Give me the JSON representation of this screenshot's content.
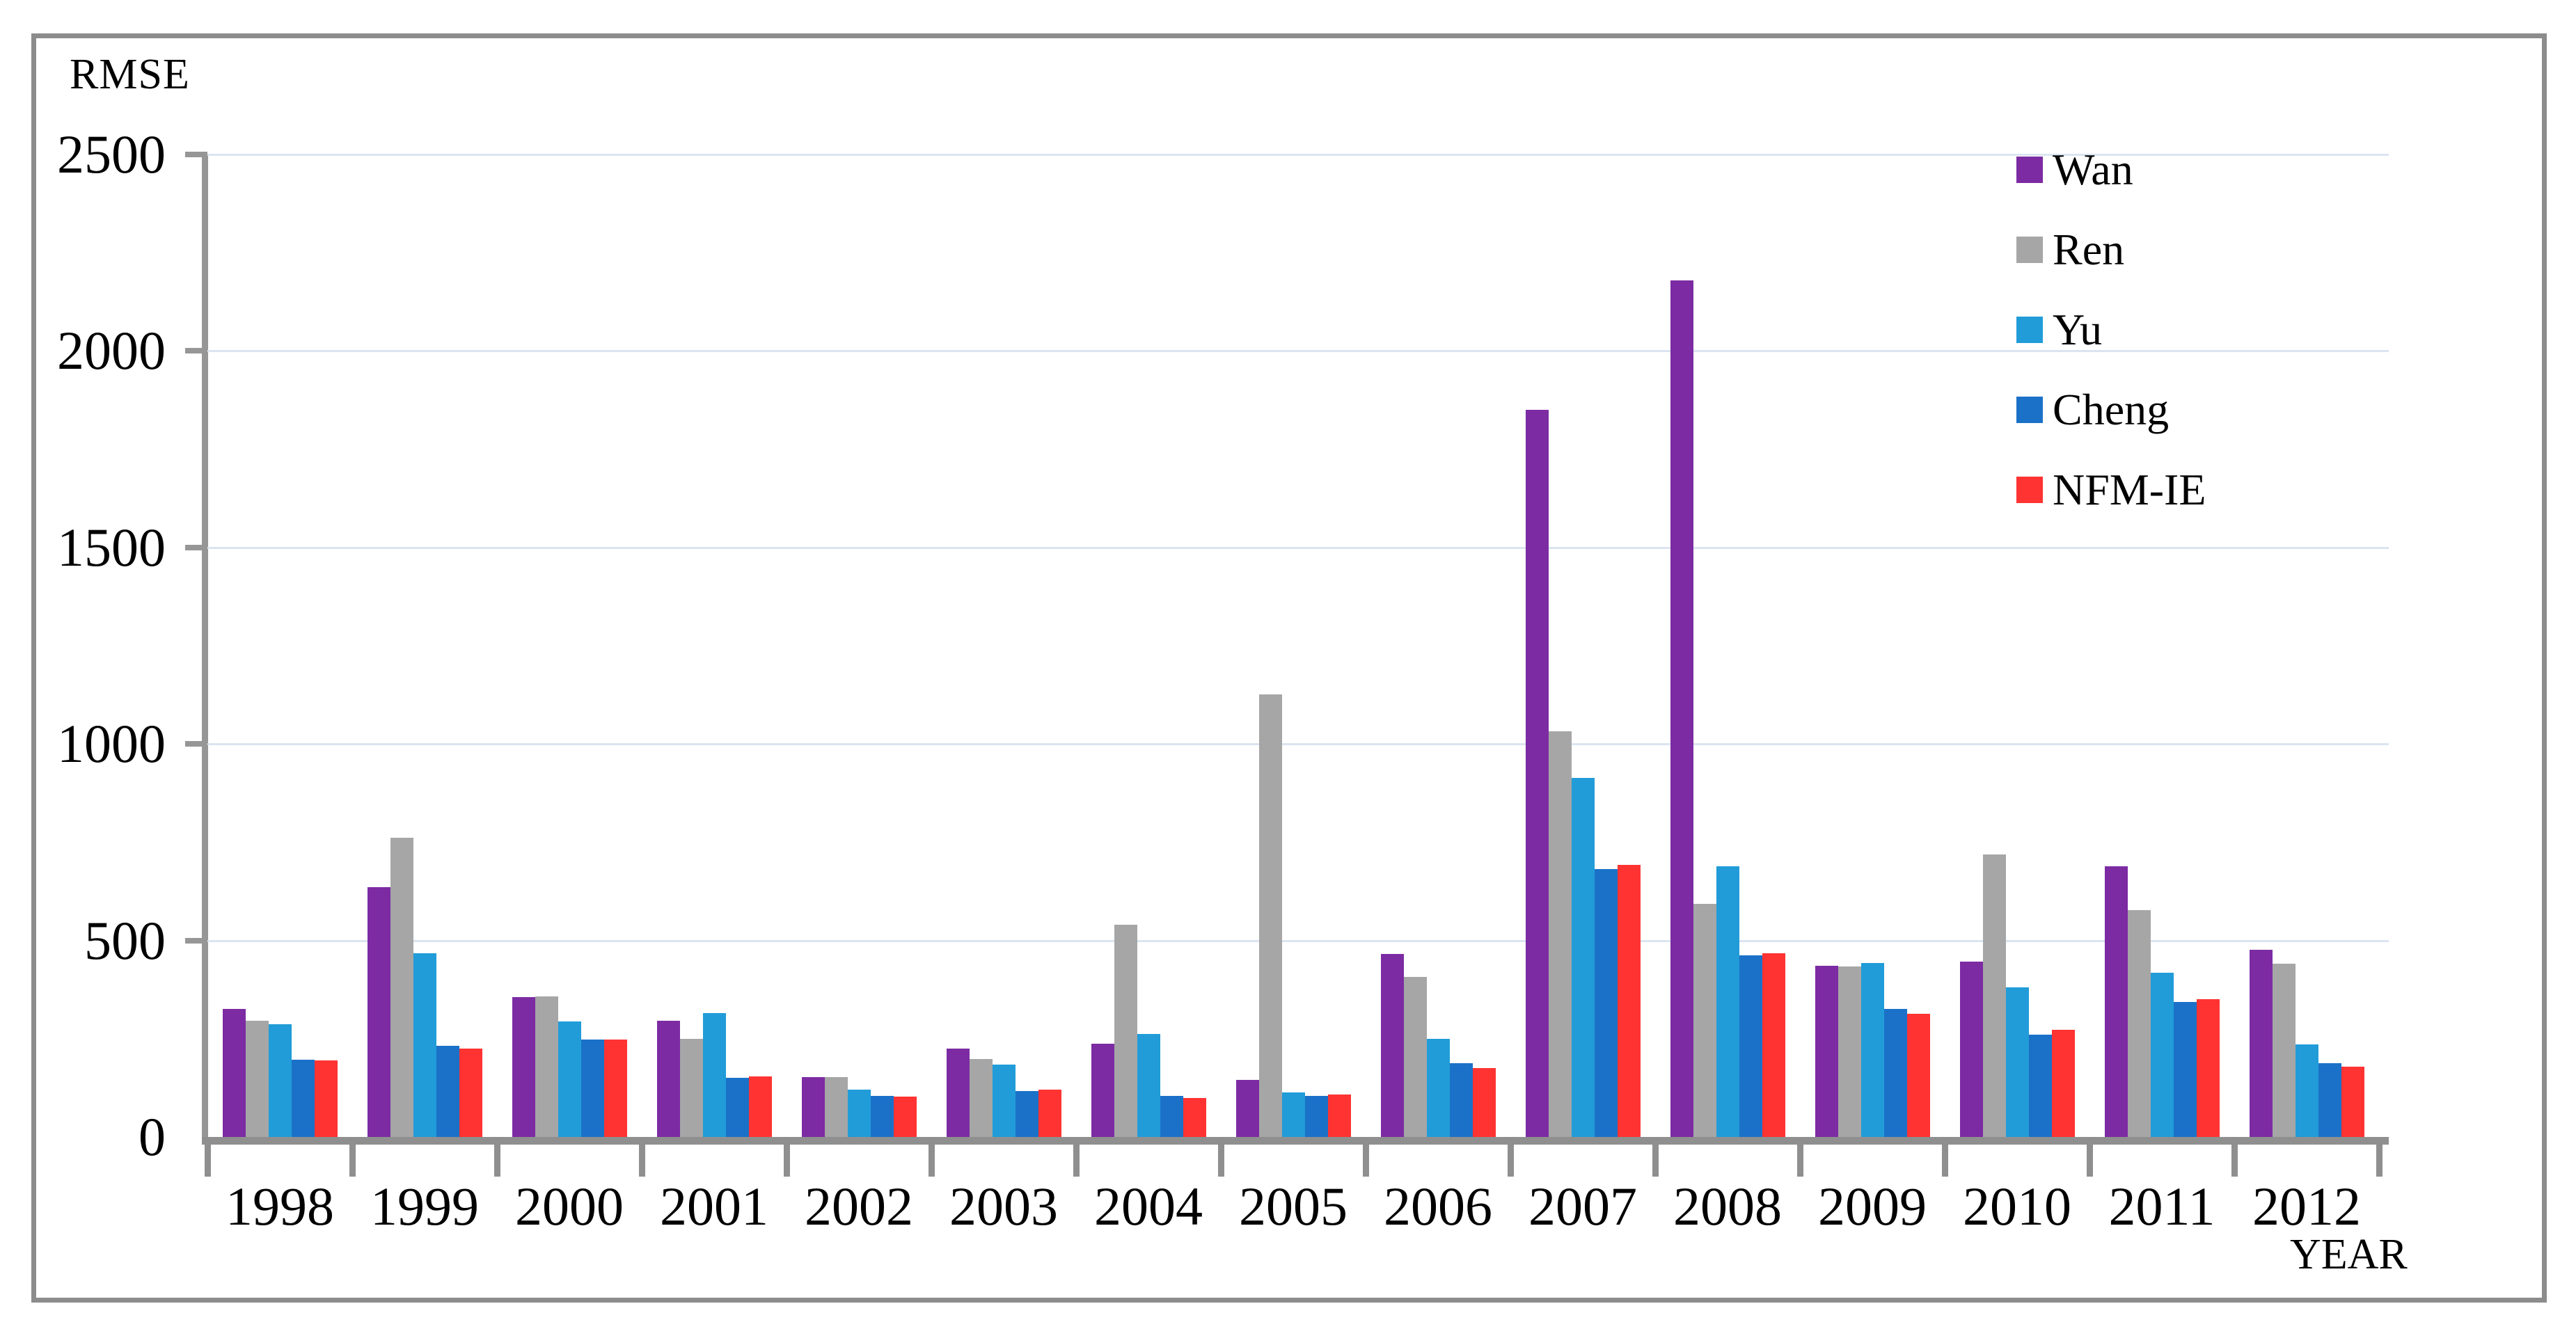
{
  "chart_data": {
    "type": "bar",
    "title": "",
    "ylabel": "RMSE",
    "xlabel": "YEAR",
    "ylim": [
      0,
      2500
    ],
    "yticks": [
      0,
      500,
      1000,
      1500,
      2000,
      2500
    ],
    "grid": "horizontal",
    "gridline_color": "#dbe4f0",
    "axis_color": "#8f8f8f",
    "frame_color": "#8c8c8c",
    "legend_position": "upper-right-inside",
    "categories": [
      "1998",
      "1999",
      "2000",
      "2001",
      "2002",
      "2003",
      "2004",
      "2005",
      "2006",
      "2007",
      "2008",
      "2009",
      "2010",
      "2011",
      "2012"
    ],
    "series": [
      {
        "name": "Wan",
        "color": "#7C2BA3",
        "values": [
          325,
          636,
          356,
          296,
          152,
          225,
          237,
          146,
          465,
          1851,
          2179,
          435,
          446,
          688,
          476
        ]
      },
      {
        "name": "Ren",
        "color": "#A6A6A6",
        "values": [
          295,
          761,
          358,
          250,
          152,
          198,
          540,
          1126,
          408,
          1032,
          593,
          433,
          718,
          578,
          441
        ]
      },
      {
        "name": "Yu",
        "color": "#219CD8",
        "values": [
          287,
          468,
          294,
          315,
          121,
          184,
          262,
          113,
          250,
          914,
          688,
          442,
          381,
          417,
          236
        ]
      },
      {
        "name": "Cheng",
        "color": "#1B71C8",
        "values": [
          197,
          232,
          248,
          150,
          104,
          116,
          105,
          105,
          188,
          681,
          462,
          326,
          261,
          344,
          188
        ]
      },
      {
        "name": "NFM-IE",
        "color": "#FF3332",
        "values": [
          194,
          225,
          247,
          154,
          102,
          121,
          100,
          108,
          176,
          692,
          467,
          314,
          273,
          350,
          179
        ]
      }
    ]
  }
}
